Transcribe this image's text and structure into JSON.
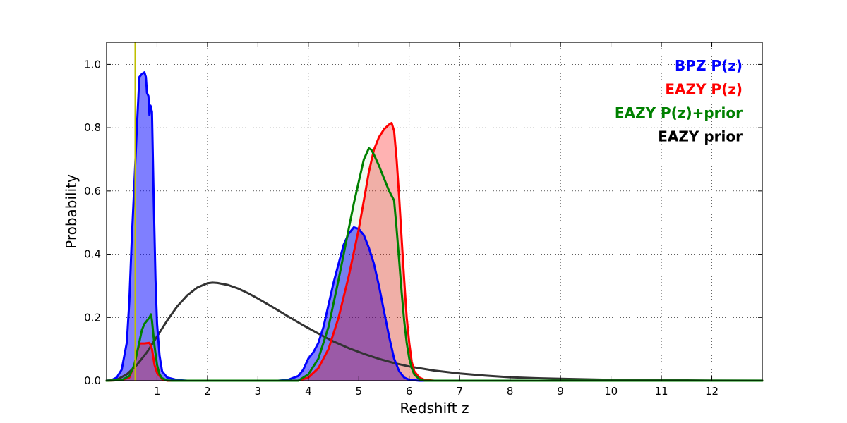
{
  "chart_data": {
    "type": "area",
    "title": "",
    "xlabel": "Redshift z",
    "ylabel": "Probability",
    "xlim": [
      0,
      13
    ],
    "ylim": [
      0,
      1.07
    ],
    "grid": true,
    "legend_position": "top-right",
    "xticks": [
      1,
      2,
      3,
      4,
      5,
      6,
      7,
      8,
      9,
      10,
      11,
      12
    ],
    "yticks": [
      0.0,
      0.2,
      0.4,
      0.6,
      0.8,
      1.0
    ],
    "ytick_labels": [
      "0.0",
      "0.2",
      "0.4",
      "0.6",
      "0.8",
      "1.0"
    ],
    "vline": {
      "x": 0.57,
      "color": "#bfbf00"
    },
    "series": [
      {
        "name": "EAZY prior",
        "color": "#333333",
        "filled": false,
        "points": [
          [
            0,
            0
          ],
          [
            0.2,
            0.003
          ],
          [
            0.4,
            0.02
          ],
          [
            0.6,
            0.05
          ],
          [
            0.8,
            0.09
          ],
          [
            1.0,
            0.14
          ],
          [
            1.2,
            0.19
          ],
          [
            1.4,
            0.235
          ],
          [
            1.6,
            0.27
          ],
          [
            1.8,
            0.295
          ],
          [
            2.0,
            0.308
          ],
          [
            2.1,
            0.31
          ],
          [
            2.2,
            0.309
          ],
          [
            2.4,
            0.303
          ],
          [
            2.6,
            0.292
          ],
          [
            2.8,
            0.277
          ],
          [
            3.0,
            0.26
          ],
          [
            3.3,
            0.232
          ],
          [
            3.6,
            0.203
          ],
          [
            3.9,
            0.175
          ],
          [
            4.2,
            0.149
          ],
          [
            4.5,
            0.124
          ],
          [
            4.8,
            0.103
          ],
          [
            5.1,
            0.085
          ],
          [
            5.4,
            0.069
          ],
          [
            5.7,
            0.056
          ],
          [
            6.0,
            0.045
          ],
          [
            6.5,
            0.032
          ],
          [
            7.0,
            0.023
          ],
          [
            7.5,
            0.016
          ],
          [
            8.0,
            0.011
          ],
          [
            8.5,
            0.008
          ],
          [
            9.0,
            0.006
          ],
          [
            10.0,
            0.003
          ],
          [
            11.0,
            0.0015
          ],
          [
            12.0,
            0.0007
          ],
          [
            13.0,
            0.0003
          ]
        ]
      },
      {
        "name": "BPZ P(z)",
        "color": "#0000ff",
        "fill": "#0000ff",
        "fill_opacity": 0.5,
        "filled": true,
        "points": [
          [
            0,
            0
          ],
          [
            0.1,
            0.002
          ],
          [
            0.2,
            0.01
          ],
          [
            0.3,
            0.035
          ],
          [
            0.4,
            0.12
          ],
          [
            0.45,
            0.25
          ],
          [
            0.5,
            0.45
          ],
          [
            0.55,
            0.62
          ],
          [
            0.6,
            0.8
          ],
          [
            0.65,
            0.96
          ],
          [
            0.7,
            0.97
          ],
          [
            0.75,
            0.975
          ],
          [
            0.78,
            0.96
          ],
          [
            0.8,
            0.91
          ],
          [
            0.83,
            0.9
          ],
          [
            0.85,
            0.84
          ],
          [
            0.87,
            0.87
          ],
          [
            0.9,
            0.85
          ],
          [
            0.93,
            0.6
          ],
          [
            0.97,
            0.32
          ],
          [
            1.0,
            0.18
          ],
          [
            1.05,
            0.08
          ],
          [
            1.1,
            0.03
          ],
          [
            1.2,
            0.01
          ],
          [
            1.4,
            0.002
          ],
          [
            1.6,
            0
          ],
          [
            3.4,
            0
          ],
          [
            3.6,
            0.003
          ],
          [
            3.8,
            0.015
          ],
          [
            3.9,
            0.035
          ],
          [
            4.0,
            0.07
          ],
          [
            4.1,
            0.09
          ],
          [
            4.2,
            0.12
          ],
          [
            4.3,
            0.17
          ],
          [
            4.4,
            0.24
          ],
          [
            4.5,
            0.31
          ],
          [
            4.6,
            0.37
          ],
          [
            4.7,
            0.43
          ],
          [
            4.8,
            0.465
          ],
          [
            4.9,
            0.485
          ],
          [
            5.0,
            0.48
          ],
          [
            5.1,
            0.46
          ],
          [
            5.2,
            0.42
          ],
          [
            5.3,
            0.37
          ],
          [
            5.4,
            0.3
          ],
          [
            5.5,
            0.22
          ],
          [
            5.6,
            0.14
          ],
          [
            5.7,
            0.07
          ],
          [
            5.8,
            0.03
          ],
          [
            5.9,
            0.01
          ],
          [
            6.0,
            0.003
          ],
          [
            6.2,
            0
          ],
          [
            13,
            0
          ]
        ]
      },
      {
        "name": "EAZY P(z)",
        "color": "#ff0000",
        "fill": "#ff0000",
        "fill_opacity": 0.3,
        "filled": true,
        "points": [
          [
            0,
            0
          ],
          [
            0.3,
            0.002
          ],
          [
            0.45,
            0.01
          ],
          [
            0.55,
            0.05
          ],
          [
            0.62,
            0.1
          ],
          [
            0.66,
            0.118
          ],
          [
            0.75,
            0.118
          ],
          [
            0.85,
            0.12
          ],
          [
            0.9,
            0.1
          ],
          [
            0.95,
            0.05
          ],
          [
            1.0,
            0.025
          ],
          [
            1.1,
            0.005
          ],
          [
            1.2,
            0
          ],
          [
            3.8,
            0
          ],
          [
            4.0,
            0.01
          ],
          [
            4.2,
            0.04
          ],
          [
            4.4,
            0.1
          ],
          [
            4.6,
            0.2
          ],
          [
            4.8,
            0.33
          ],
          [
            5.0,
            0.48
          ],
          [
            5.1,
            0.57
          ],
          [
            5.2,
            0.66
          ],
          [
            5.3,
            0.73
          ],
          [
            5.4,
            0.77
          ],
          [
            5.5,
            0.795
          ],
          [
            5.6,
            0.81
          ],
          [
            5.65,
            0.815
          ],
          [
            5.7,
            0.79
          ],
          [
            5.75,
            0.7
          ],
          [
            5.8,
            0.58
          ],
          [
            5.85,
            0.45
          ],
          [
            5.9,
            0.32
          ],
          [
            5.95,
            0.2
          ],
          [
            6.0,
            0.12
          ],
          [
            6.05,
            0.06
          ],
          [
            6.1,
            0.03
          ],
          [
            6.2,
            0.01
          ],
          [
            6.3,
            0.003
          ],
          [
            6.5,
            0
          ],
          [
            13,
            0
          ]
        ]
      },
      {
        "name": "EAZY P(z)+prior",
        "color": "#008000",
        "fill": "#008000",
        "fill_opacity": 0.06,
        "filled": true,
        "points": [
          [
            0,
            0
          ],
          [
            0.3,
            0.002
          ],
          [
            0.45,
            0.015
          ],
          [
            0.55,
            0.05
          ],
          [
            0.62,
            0.1
          ],
          [
            0.7,
            0.16
          ],
          [
            0.75,
            0.18
          ],
          [
            0.8,
            0.19
          ],
          [
            0.85,
            0.2
          ],
          [
            0.88,
            0.21
          ],
          [
            0.9,
            0.19
          ],
          [
            0.95,
            0.11
          ],
          [
            1.0,
            0.05
          ],
          [
            1.05,
            0.02
          ],
          [
            1.1,
            0.008
          ],
          [
            1.2,
            0.001
          ],
          [
            1.3,
            0
          ],
          [
            3.8,
            0
          ],
          [
            4.0,
            0.02
          ],
          [
            4.2,
            0.07
          ],
          [
            4.4,
            0.17
          ],
          [
            4.6,
            0.32
          ],
          [
            4.7,
            0.4
          ],
          [
            4.8,
            0.48
          ],
          [
            4.9,
            0.56
          ],
          [
            5.0,
            0.63
          ],
          [
            5.1,
            0.7
          ],
          [
            5.2,
            0.735
          ],
          [
            5.25,
            0.73
          ],
          [
            5.3,
            0.715
          ],
          [
            5.4,
            0.68
          ],
          [
            5.5,
            0.64
          ],
          [
            5.6,
            0.6
          ],
          [
            5.7,
            0.57
          ],
          [
            5.75,
            0.48
          ],
          [
            5.8,
            0.38
          ],
          [
            5.85,
            0.28
          ],
          [
            5.9,
            0.19
          ],
          [
            5.95,
            0.12
          ],
          [
            6.0,
            0.07
          ],
          [
            6.05,
            0.04
          ],
          [
            6.1,
            0.02
          ],
          [
            6.2,
            0.005
          ],
          [
            6.3,
            0
          ],
          [
            13,
            0
          ]
        ]
      }
    ],
    "legend": [
      {
        "label": "BPZ P(z)",
        "color": "#0000ff"
      },
      {
        "label": "EAZY P(z)",
        "color": "#ff0000"
      },
      {
        "label": "EAZY P(z)+prior",
        "color": "#008000"
      },
      {
        "label": "EAZY prior",
        "color": "#000000"
      }
    ]
  }
}
